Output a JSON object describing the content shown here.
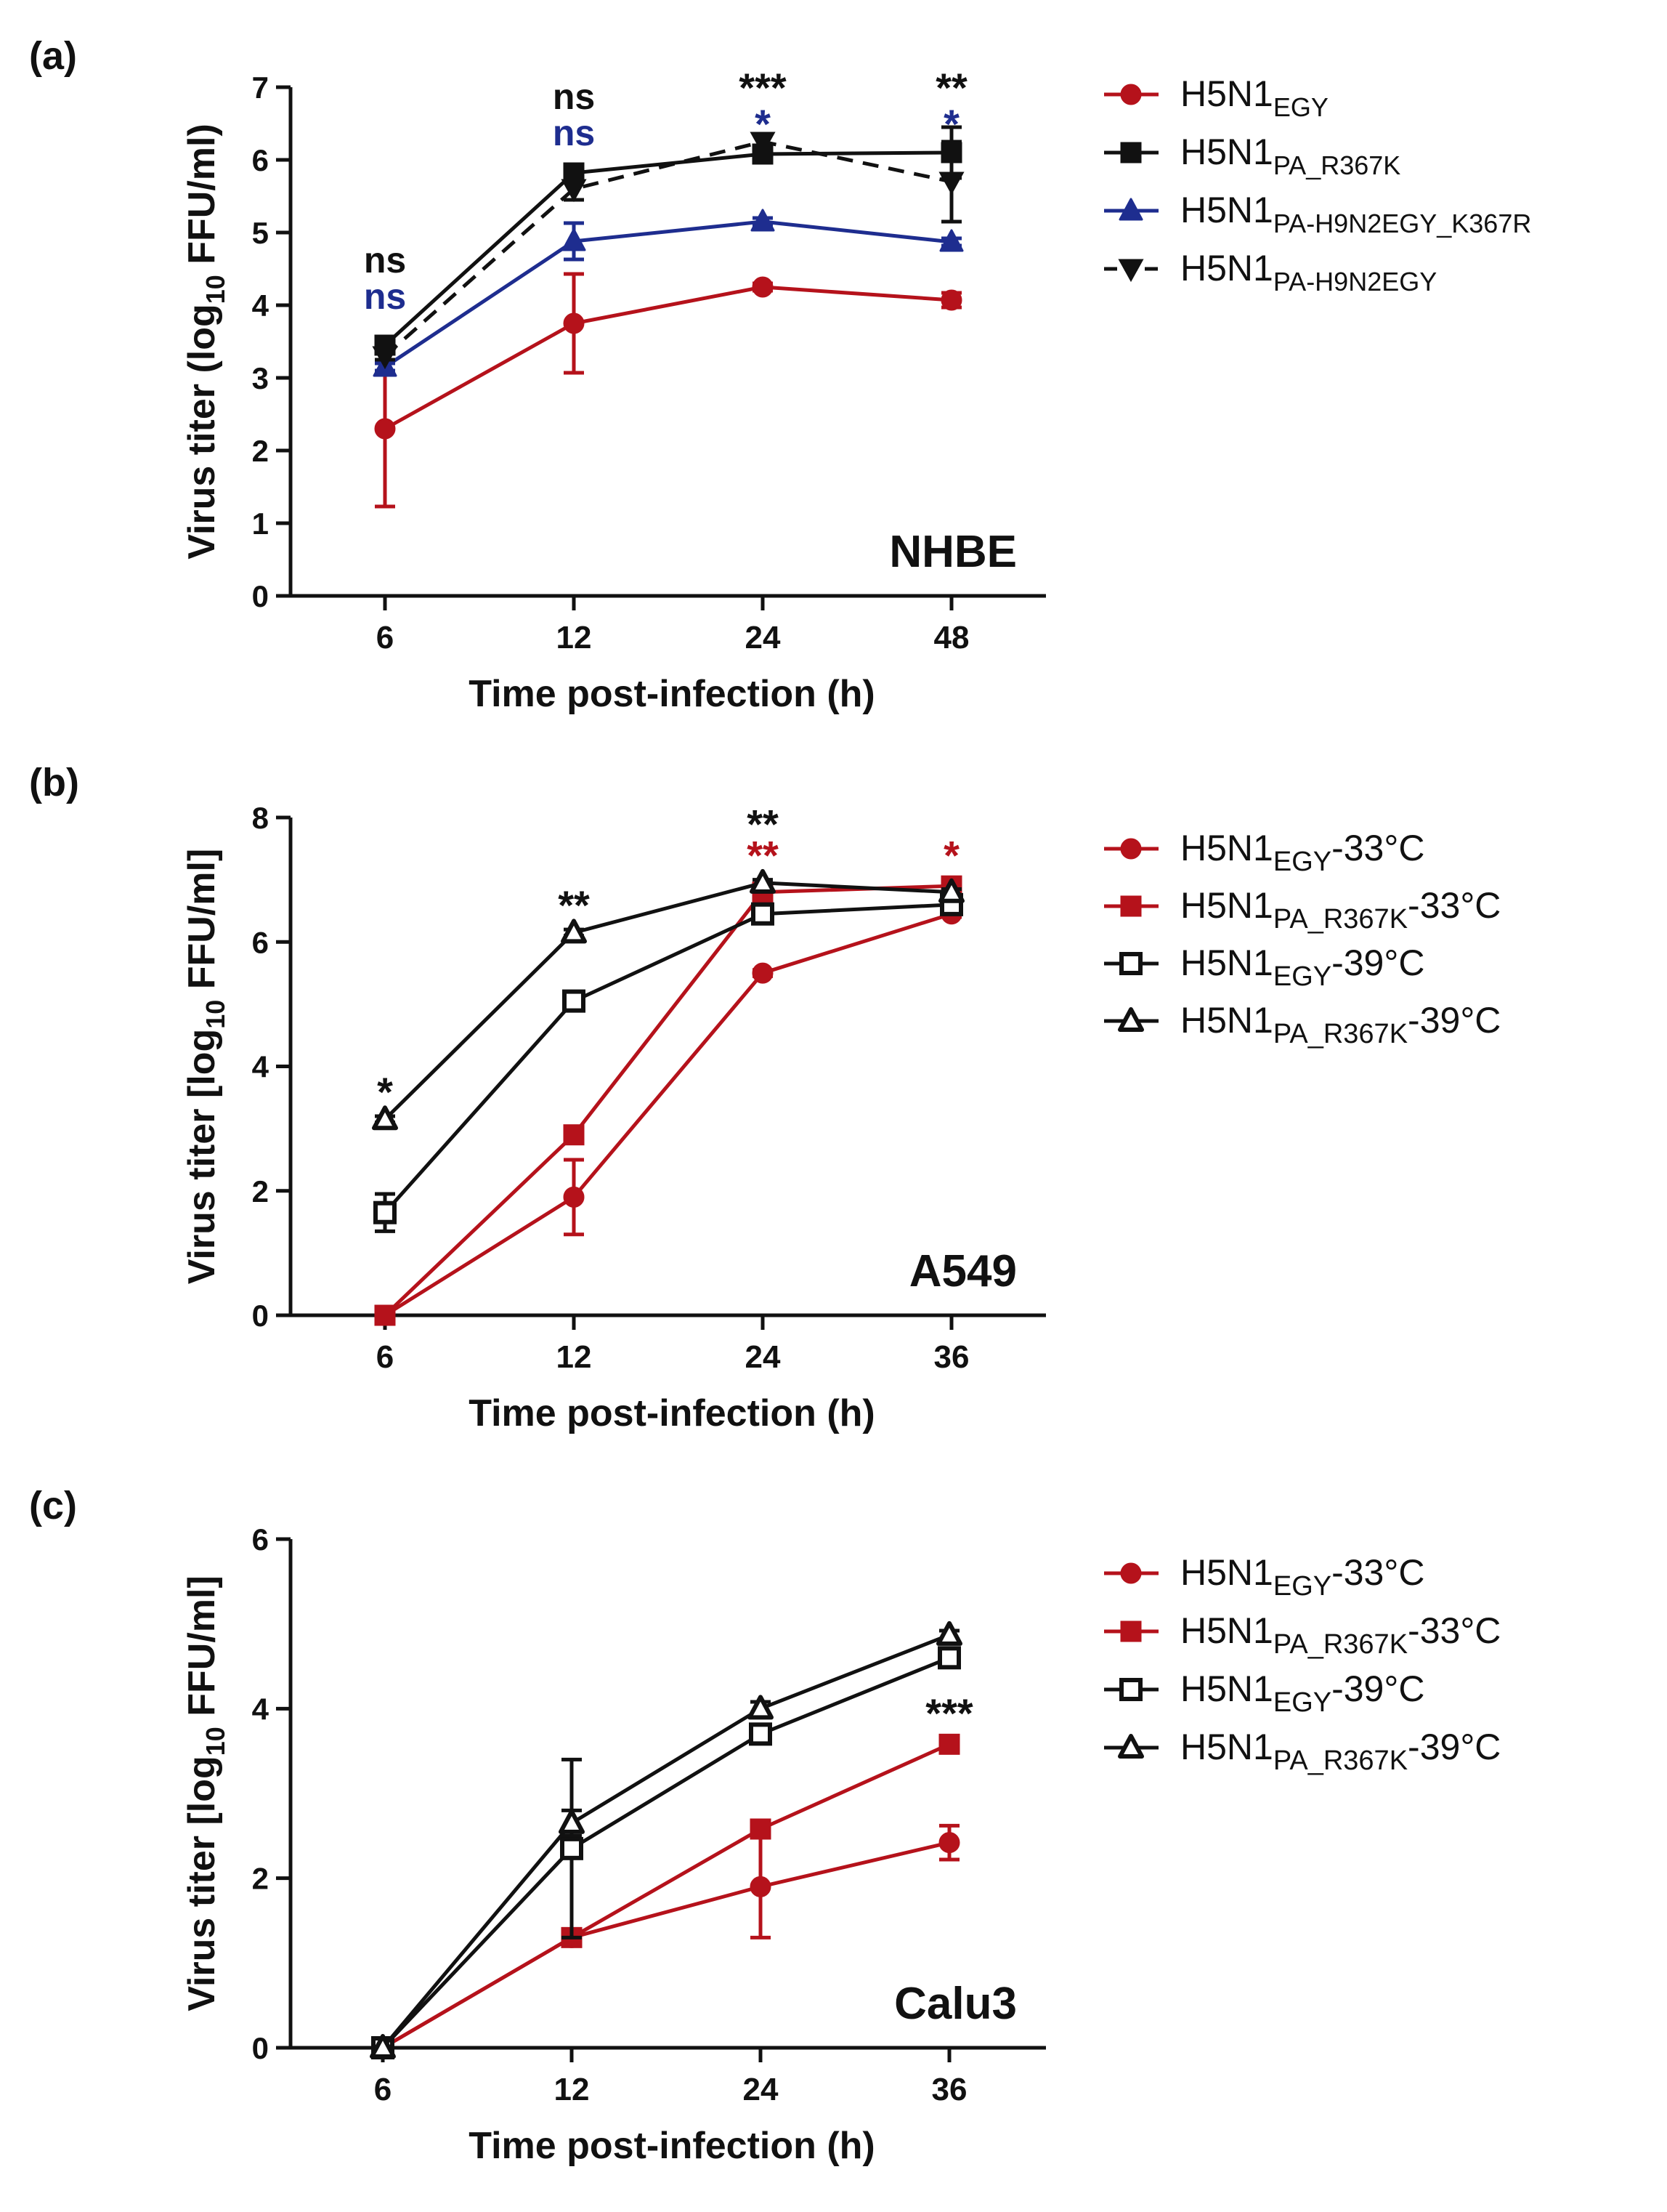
{
  "chart_data": [
    {
      "type": "line",
      "panel_label": "(a)",
      "cell_label": "NHBE",
      "xlabel": "Time post-infection (h)",
      "ylabel_parts": [
        "Virus titer (log",
        "10",
        " FFU/ml)"
      ],
      "categories": [
        "6",
        "12",
        "24",
        "48"
      ],
      "yticks": [
        "0",
        "1",
        "2",
        "3",
        "4",
        "5",
        "6",
        "7"
      ],
      "ylim": [
        0,
        7
      ],
      "grid": false,
      "legend_position": "right",
      "series": [
        {
          "label_main": "H5N1",
          "label_sub": "EGY",
          "label_tail": "",
          "color": "#b5121b",
          "marker": "circle",
          "filled": true,
          "dashed": false,
          "values": [
            2.3,
            3.75,
            4.25,
            4.07
          ],
          "errors": [
            1.07,
            0.68,
            0.05,
            0.1
          ]
        },
        {
          "label_main": "H5N1",
          "label_sub": "PA_R367K",
          "label_tail": "",
          "color": "#111111",
          "marker": "square",
          "filled": true,
          "dashed": false,
          "values": [
            3.45,
            5.82,
            6.08,
            6.1
          ],
          "errors": [
            0.08,
            0.08,
            0.12,
            0.35
          ]
        },
        {
          "label_main": "H5N1",
          "label_sub": "PA-H9N2EGY_K367R",
          "label_tail": "",
          "color": "#1e2d8f",
          "marker": "triangle",
          "filled": true,
          "dashed": false,
          "values": [
            3.15,
            4.88,
            5.15,
            4.87
          ],
          "errors": [
            0.05,
            0.25,
            0.05,
            0.05
          ]
        },
        {
          "label_main": "H5N1",
          "label_sub": "PA-H9N2EGY",
          "label_tail": "",
          "color": "#111111",
          "marker": "triangle-down",
          "filled": true,
          "dashed": true,
          "values": [
            3.3,
            5.6,
            6.25,
            5.7
          ],
          "errors": [
            0.05,
            0.15,
            0.1,
            0.55
          ]
        }
      ],
      "annotations": [
        {
          "x": "6",
          "y": 4.45,
          "text": "ns",
          "color": "#111111"
        },
        {
          "x": "6",
          "y": 3.95,
          "text": "ns",
          "color": "#1e2d8f"
        },
        {
          "x": "12",
          "y": 6.7,
          "text": "ns",
          "color": "#111111"
        },
        {
          "x": "12",
          "y": 6.2,
          "text": "ns",
          "color": "#1e2d8f"
        },
        {
          "x": "24",
          "y": 7.0,
          "text": "***",
          "color": "#111111"
        },
        {
          "x": "24",
          "y": 6.5,
          "text": "*",
          "color": "#1e2d8f"
        },
        {
          "x": "48",
          "y": 7.0,
          "text": "**",
          "color": "#111111"
        },
        {
          "x": "48",
          "y": 6.5,
          "text": "*",
          "color": "#1e2d8f"
        }
      ]
    },
    {
      "type": "line",
      "panel_label": "(b)",
      "cell_label": "A549",
      "xlabel": "Time post-infection (h)",
      "ylabel_parts": [
        "Virus titer [log",
        "10",
        " FFU/ml]"
      ],
      "categories": [
        "6",
        "12",
        "24",
        "36"
      ],
      "yticks": [
        "0",
        "2",
        "4",
        "6",
        "8"
      ],
      "ylim": [
        0,
        8
      ],
      "grid": false,
      "legend_position": "right",
      "series": [
        {
          "label_main": "H5N1",
          "label_sub": "EGY",
          "label_tail": "-33°C",
          "color": "#b5121b",
          "marker": "circle",
          "filled": true,
          "dashed": false,
          "values": [
            0,
            1.9,
            5.5,
            6.45
          ],
          "errors": [
            0,
            0.6,
            0.05,
            0.05
          ]
        },
        {
          "label_main": "H5N1",
          "label_sub": "PA_R367K",
          "label_tail": "-33°C",
          "color": "#b5121b",
          "marker": "square",
          "filled": true,
          "dashed": false,
          "values": [
            0,
            2.9,
            6.8,
            6.9
          ],
          "errors": [
            0,
            0.1,
            0.1,
            0.05
          ]
        },
        {
          "label_main": "H5N1",
          "label_sub": "EGY",
          "label_tail": "-39°C",
          "color": "#111111",
          "marker": "square",
          "filled": false,
          "dashed": false,
          "values": [
            1.65,
            5.05,
            6.45,
            6.6
          ],
          "errors": [
            0.3,
            0.1,
            0.1,
            0.1
          ]
        },
        {
          "label_main": "H5N1",
          "label_sub": "PA_R367K",
          "label_tail": "-39°C",
          "color": "#111111",
          "marker": "triangle",
          "filled": false,
          "dashed": false,
          "values": [
            3.15,
            6.15,
            6.95,
            6.8
          ],
          "errors": [
            0.05,
            0.05,
            0.05,
            0.05
          ]
        }
      ],
      "annotations": [
        {
          "x": "6",
          "y": 3.6,
          "text": "*",
          "color": "#111111"
        },
        {
          "x": "12",
          "y": 6.6,
          "text": "**",
          "color": "#111111"
        },
        {
          "x": "24",
          "y": 7.9,
          "text": "**",
          "color": "#111111"
        },
        {
          "x": "24",
          "y": 7.4,
          "text": "**",
          "color": "#b5121b"
        },
        {
          "x": "36",
          "y": 7.4,
          "text": "*",
          "color": "#b5121b"
        }
      ]
    },
    {
      "type": "line",
      "panel_label": "(c)",
      "cell_label": "Calu3",
      "xlabel": "Time post-infection (h)",
      "ylabel_parts": [
        "Virus titer [log",
        "10",
        " FFU/ml]"
      ],
      "categories": [
        "6",
        "12",
        "24",
        "36"
      ],
      "yticks": [
        "0",
        "2",
        "4",
        "6"
      ],
      "ylim": [
        0,
        6
      ],
      "grid": false,
      "legend_position": "right",
      "series": [
        {
          "label_main": "H5N1",
          "label_sub": "EGY",
          "label_tail": "-33°C",
          "color": "#b5121b",
          "marker": "circle",
          "filled": true,
          "dashed": false,
          "values": [
            0,
            1.3,
            1.9,
            2.42
          ],
          "errors": [
            0,
            0.05,
            0.6,
            0.2
          ]
        },
        {
          "label_main": "H5N1",
          "label_sub": "PA_R367K",
          "label_tail": "-33°C",
          "color": "#b5121b",
          "marker": "square",
          "filled": true,
          "dashed": false,
          "values": [
            0,
            1.3,
            2.58,
            3.58
          ],
          "errors": [
            0,
            0.05,
            0.08,
            0.08
          ]
        },
        {
          "label_main": "H5N1",
          "label_sub": "EGY",
          "label_tail": "-39°C",
          "color": "#111111",
          "marker": "square",
          "filled": false,
          "dashed": false,
          "values": [
            0,
            2.35,
            3.7,
            4.6
          ],
          "errors": [
            0,
            1.05,
            0.1,
            0.1
          ]
        },
        {
          "label_main": "H5N1",
          "label_sub": "PA_R367K",
          "label_tail": "-39°C",
          "color": "#111111",
          "marker": "triangle",
          "filled": false,
          "dashed": false,
          "values": [
            0,
            2.65,
            4.0,
            4.87
          ],
          "errors": [
            0,
            0.15,
            0.08,
            0.05
          ]
        }
      ],
      "annotations": [
        {
          "x": "36",
          "y": 3.95,
          "text": "***",
          "color": "#111111"
        }
      ]
    }
  ]
}
